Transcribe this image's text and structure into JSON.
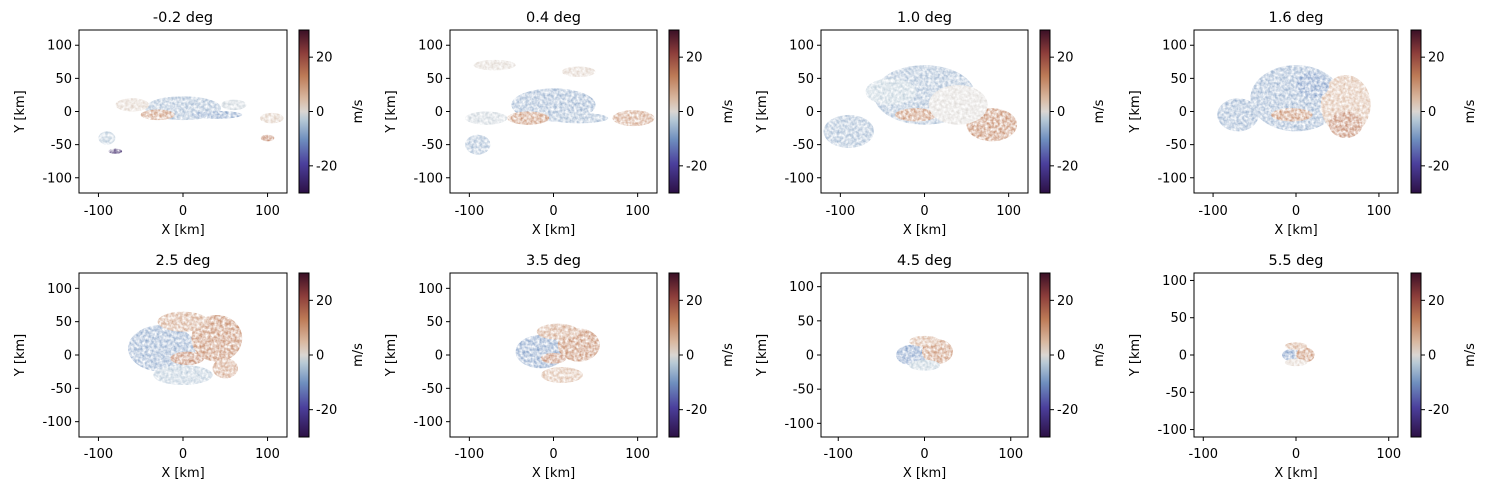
{
  "figure": {
    "colorbar_unit": "m/s"
  },
  "chart_data": [
    {
      "type": "heatmap",
      "title": "-0.2 deg",
      "xlabel": "X [km]",
      "ylabel": "Y [km]",
      "xlim": [
        -123,
        123
      ],
      "ylim": [
        -123,
        123
      ],
      "xticks": [
        -100,
        0,
        100
      ],
      "yticks": [
        -100,
        -50,
        0,
        50,
        100
      ],
      "colorbar": {
        "label": "m/s",
        "range": [
          -30,
          30
        ],
        "ticks": [
          -20,
          0,
          20
        ]
      },
      "blobs": [
        {
          "x": 0,
          "y": 5,
          "rx": 45,
          "ry": 18,
          "v": -6
        },
        {
          "x": -30,
          "y": -5,
          "rx": 20,
          "ry": 8,
          "v": 12
        },
        {
          "x": 40,
          "y": -5,
          "rx": 30,
          "ry": 6,
          "v": -9
        },
        {
          "x": -80,
          "y": -60,
          "rx": 8,
          "ry": 4,
          "v": -26
        },
        {
          "x": -90,
          "y": -40,
          "rx": 10,
          "ry": 10,
          "v": -4
        },
        {
          "x": -60,
          "y": 10,
          "rx": 20,
          "ry": 10,
          "v": 2
        },
        {
          "x": 105,
          "y": -10,
          "rx": 14,
          "ry": 8,
          "v": 3
        },
        {
          "x": 100,
          "y": -40,
          "rx": 8,
          "ry": 5,
          "v": 14
        },
        {
          "x": 60,
          "y": 10,
          "rx": 15,
          "ry": 8,
          "v": -2
        }
      ]
    },
    {
      "type": "heatmap",
      "title": "0.4 deg",
      "xlabel": "X [km]",
      "ylabel": "Y [km]",
      "xlim": [
        -123,
        123
      ],
      "ylim": [
        -123,
        123
      ],
      "xticks": [
        -100,
        0,
        100
      ],
      "yticks": [
        -100,
        -50,
        0,
        50,
        100
      ],
      "colorbar": {
        "label": "m/s",
        "range": [
          -30,
          30
        ],
        "ticks": [
          -20,
          0,
          20
        ]
      },
      "blobs": [
        {
          "x": 0,
          "y": 10,
          "rx": 50,
          "ry": 25,
          "v": -7
        },
        {
          "x": -30,
          "y": -10,
          "rx": 25,
          "ry": 10,
          "v": 12
        },
        {
          "x": 30,
          "y": -10,
          "rx": 35,
          "ry": 8,
          "v": -6
        },
        {
          "x": -90,
          "y": -50,
          "rx": 15,
          "ry": 15,
          "v": -6
        },
        {
          "x": -80,
          "y": -10,
          "rx": 25,
          "ry": 10,
          "v": -2
        },
        {
          "x": 95,
          "y": -10,
          "rx": 25,
          "ry": 12,
          "v": 10
        },
        {
          "x": -70,
          "y": 70,
          "rx": 25,
          "ry": 8,
          "v": 1
        },
        {
          "x": 30,
          "y": 60,
          "rx": 20,
          "ry": 8,
          "v": 2
        }
      ]
    },
    {
      "type": "heatmap",
      "title": "1.0 deg",
      "xlabel": "X [km]",
      "ylabel": "Y [km]",
      "xlim": [
        -123,
        123
      ],
      "ylim": [
        -123,
        123
      ],
      "xticks": [
        -100,
        0,
        100
      ],
      "yticks": [
        -100,
        -50,
        0,
        50,
        100
      ],
      "colorbar": {
        "label": "m/s",
        "range": [
          -30,
          30
        ],
        "ticks": [
          -20,
          0,
          20
        ]
      },
      "blobs": [
        {
          "x": 0,
          "y": 25,
          "rx": 60,
          "ry": 45,
          "v": -6
        },
        {
          "x": -10,
          "y": -5,
          "rx": 25,
          "ry": 10,
          "v": 12
        },
        {
          "x": 80,
          "y": -20,
          "rx": 30,
          "ry": 25,
          "v": 13
        },
        {
          "x": -90,
          "y": -30,
          "rx": 30,
          "ry": 25,
          "v": -6
        },
        {
          "x": 40,
          "y": 10,
          "rx": 35,
          "ry": 30,
          "v": 0
        },
        {
          "x": -40,
          "y": 30,
          "rx": 30,
          "ry": 20,
          "v": -3
        }
      ]
    },
    {
      "type": "heatmap",
      "title": "1.6 deg",
      "xlabel": "X [km]",
      "ylabel": "Y [km]",
      "xlim": [
        -123,
        123
      ],
      "ylim": [
        -123,
        123
      ],
      "xticks": [
        -100,
        0,
        100
      ],
      "yticks": [
        -100,
        -50,
        0,
        50,
        100
      ],
      "colorbar": {
        "label": "m/s",
        "range": [
          -30,
          30
        ],
        "ticks": [
          -20,
          0,
          20
        ]
      },
      "blobs": [
        {
          "x": 0,
          "y": 20,
          "rx": 55,
          "ry": 50,
          "v": -7
        },
        {
          "x": -5,
          "y": -5,
          "rx": 25,
          "ry": 10,
          "v": 12
        },
        {
          "x": 60,
          "y": 10,
          "rx": 30,
          "ry": 45,
          "v": 6
        },
        {
          "x": -70,
          "y": -5,
          "rx": 25,
          "ry": 25,
          "v": -7
        },
        {
          "x": 20,
          "y": 40,
          "rx": 20,
          "ry": 20,
          "v": -10
        },
        {
          "x": 60,
          "y": -20,
          "rx": 20,
          "ry": 20,
          "v": 14
        }
      ]
    },
    {
      "type": "heatmap",
      "title": "2.5 deg",
      "xlabel": "X [km]",
      "ylabel": "Y [km]",
      "xlim": [
        -123,
        123
      ],
      "ylim": [
        -123,
        123
      ],
      "xticks": [
        -100,
        0,
        100
      ],
      "yticks": [
        -100,
        -50,
        0,
        50,
        100
      ],
      "colorbar": {
        "label": "m/s",
        "range": [
          -30,
          30
        ],
        "ticks": [
          -20,
          0,
          20
        ]
      },
      "blobs": [
        {
          "x": -25,
          "y": 10,
          "rx": 40,
          "ry": 35,
          "v": -8
        },
        {
          "x": 40,
          "y": 25,
          "rx": 30,
          "ry": 35,
          "v": 13
        },
        {
          "x": 0,
          "y": 50,
          "rx": 30,
          "ry": 15,
          "v": 9
        },
        {
          "x": 5,
          "y": -5,
          "rx": 20,
          "ry": 10,
          "v": 14
        },
        {
          "x": 0,
          "y": -30,
          "rx": 35,
          "ry": 15,
          "v": -4
        },
        {
          "x": 50,
          "y": -20,
          "rx": 15,
          "ry": 15,
          "v": 10
        }
      ]
    },
    {
      "type": "heatmap",
      "title": "3.5 deg",
      "xlabel": "X [km]",
      "ylabel": "Y [km]",
      "xlim": [
        -123,
        123
      ],
      "ylim": [
        -123,
        123
      ],
      "xticks": [
        -100,
        0,
        100
      ],
      "yticks": [
        -100,
        -50,
        0,
        50,
        100
      ],
      "colorbar": {
        "label": "m/s",
        "range": [
          -30,
          30
        ],
        "ticks": [
          -20,
          0,
          20
        ]
      },
      "blobs": [
        {
          "x": -15,
          "y": 5,
          "rx": 30,
          "ry": 25,
          "v": -9
        },
        {
          "x": 30,
          "y": 15,
          "rx": 25,
          "ry": 25,
          "v": 13
        },
        {
          "x": 5,
          "y": 35,
          "rx": 25,
          "ry": 12,
          "v": 9
        },
        {
          "x": 0,
          "y": -5,
          "rx": 15,
          "ry": 8,
          "v": 14
        },
        {
          "x": 10,
          "y": -30,
          "rx": 25,
          "ry": 12,
          "v": 6
        }
      ]
    },
    {
      "type": "heatmap",
      "title": "4.5 deg",
      "xlabel": "X [km]",
      "ylabel": "Y [km]",
      "xlim": [
        -120,
        120
      ],
      "ylim": [
        -120,
        120
      ],
      "xticks": [
        -100,
        0,
        100
      ],
      "yticks": [
        -100,
        -50,
        0,
        50,
        100
      ],
      "colorbar": {
        "label": "m/s",
        "range": [
          -30,
          30
        ],
        "ticks": [
          -20,
          0,
          20
        ]
      },
      "blobs": [
        {
          "x": -15,
          "y": 0,
          "rx": 18,
          "ry": 15,
          "v": -10
        },
        {
          "x": 15,
          "y": 5,
          "rx": 18,
          "ry": 18,
          "v": 12
        },
        {
          "x": 0,
          "y": 20,
          "rx": 18,
          "ry": 8,
          "v": 8
        },
        {
          "x": 0,
          "y": -15,
          "rx": 18,
          "ry": 8,
          "v": -3
        }
      ]
    },
    {
      "type": "heatmap",
      "title": "5.5 deg",
      "xlabel": "X [km]",
      "ylabel": "Y [km]",
      "xlim": [
        -110,
        110
      ],
      "ylim": [
        -110,
        110
      ],
      "xticks": [
        -100,
        0,
        100
      ],
      "yticks": [
        -100,
        -50,
        0,
        50,
        100
      ],
      "colorbar": {
        "label": "m/s",
        "range": [
          -30,
          30
        ],
        "ticks": [
          -20,
          0,
          20
        ]
      },
      "blobs": [
        {
          "x": -5,
          "y": 0,
          "rx": 10,
          "ry": 8,
          "v": -10
        },
        {
          "x": 10,
          "y": 0,
          "rx": 10,
          "ry": 10,
          "v": 12
        },
        {
          "x": 0,
          "y": 12,
          "rx": 12,
          "ry": 5,
          "v": 8
        },
        {
          "x": 0,
          "y": -10,
          "rx": 12,
          "ry": 5,
          "v": 2
        }
      ]
    }
  ]
}
